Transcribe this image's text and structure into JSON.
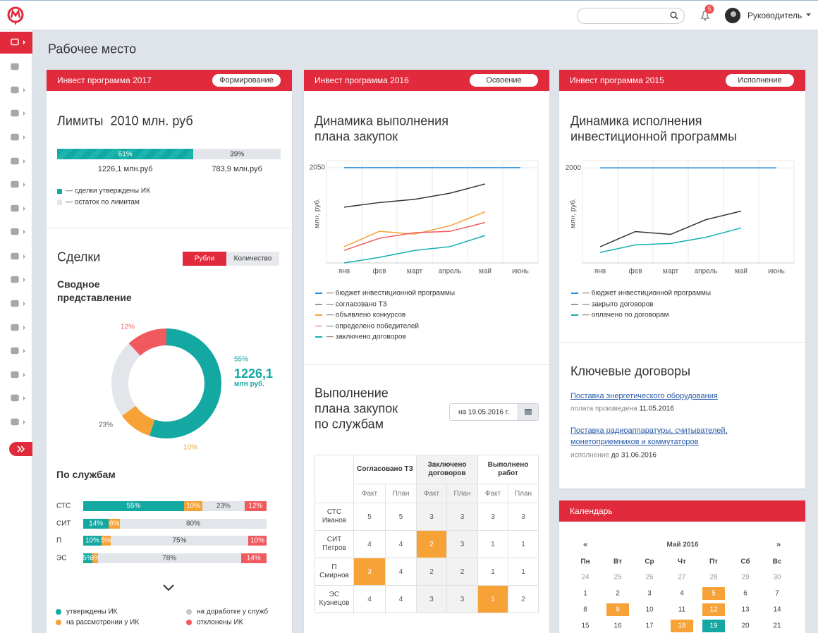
{
  "header": {
    "user": "Руководитель",
    "notifications": "5"
  },
  "page_title": "Рабочее место",
  "card_2017": {
    "title": "Инвест программа 2017",
    "badge": "Формирование",
    "limits_title": "Лимиты  2010 млн. руб",
    "limit_bar": {
      "values": [
        61,
        39
      ],
      "value_labels": [
        "61%",
        "39%"
      ],
      "amounts": [
        "1226,1 млн.руб",
        "783,9 млн.руб"
      ],
      "colors": [
        "#13a8a2",
        "#e2e5ea"
      ]
    },
    "legend": [
      "— сделки утверждены ИК",
      "— остаток по лимитам"
    ],
    "deals_title": "Сделки",
    "toggle": [
      "Рубли",
      "Количество"
    ],
    "summary_title": [
      "Сводное",
      "представление"
    ],
    "donut": {
      "type": "pie",
      "values": [
        55,
        10,
        23,
        12
      ],
      "value_labels": [
        "55%",
        "10%",
        "23%",
        "12%"
      ],
      "colors": [
        "#13a8a2",
        "#f7a236",
        "#e2e5ea",
        "#f05a5f"
      ],
      "center_value": "1226,1",
      "center_unit": "млн руб."
    },
    "services_title": "По службам",
    "services": {
      "type": "bar",
      "colors": [
        "#13a8a2",
        "#f7a236",
        "#e2e5ea",
        "#f05a5f"
      ],
      "rows": [
        {
          "name": "СТС",
          "values": [
            55,
            10,
            23,
            12
          ],
          "value_labels": [
            "55%",
            "10%",
            "23%",
            "12%"
          ]
        },
        {
          "name": "СИТ",
          "values": [
            14,
            6,
            80
          ],
          "value_labels": [
            "14%",
            "6%",
            "80%"
          ]
        },
        {
          "name": "П",
          "values": [
            10,
            5,
            75,
            10
          ],
          "value_labels": [
            "10%",
            "5%",
            "75%",
            "10%"
          ]
        },
        {
          "name": "ЭС",
          "values": [
            5,
            3,
            78,
            14
          ],
          "value_labels": [
            "5%",
            "3%",
            "78%",
            "14%"
          ]
        }
      ]
    },
    "status_legend": [
      "утверждены ИК",
      "на рассмотрении у ИК",
      "на доработке у служб",
      "отклонены ИК"
    ]
  },
  "card_2016": {
    "title": "Инвест программа 2016",
    "badge": "Освоение",
    "chart_title": [
      "Динамика выполнения",
      "плана закупок"
    ],
    "chart": {
      "type": "line",
      "y_label": "млн. руб.",
      "categories": [
        "янв",
        "фев",
        "март",
        "апрель",
        "май",
        "июнь"
      ],
      "ylim": [
        0,
        2200
      ],
      "yticks": [
        2050
      ],
      "grid": true,
      "series": [
        {
          "name": "— бюджет инвестиционной программы",
          "color": "#2a8fd6",
          "values": [
            2050,
            2050,
            2050,
            2050,
            2050,
            2050
          ]
        },
        {
          "name": "— согласовано ТЗ",
          "color": "#333333",
          "values": [
            1200,
            1300,
            1370,
            1500,
            1700,
            null
          ]
        },
        {
          "name": "— объявлено конкурсов",
          "color": "#f7a236",
          "values": [
            350,
            680,
            620,
            800,
            1100,
            null
          ]
        },
        {
          "name": "— определено победителей",
          "color": "#f05a5f",
          "values": [
            270,
            530,
            650,
            680,
            870,
            null
          ]
        },
        {
          "name": "— заключено договоров",
          "color": "#13b0b0",
          "values": [
            0,
            120,
            270,
            350,
            590,
            null
          ]
        }
      ]
    },
    "plan_title": [
      "Выполнение",
      "плана закупок",
      "по службам"
    ],
    "date_button": "на 19.05.2016 г.",
    "table": {
      "groups": [
        "Согласовано ТЗ",
        "Заключено договоров",
        "Выполнено работ"
      ],
      "sub": [
        "Факт",
        "План"
      ],
      "highlight_color": "#f7a236",
      "rows": [
        {
          "dept": "СТС",
          "person": "Иванов",
          "values": [
            5,
            5,
            3,
            3,
            3,
            3
          ],
          "highlight": null
        },
        {
          "dept": "СИТ",
          "person": "Петров",
          "values": [
            4,
            4,
            2,
            3,
            1,
            1
          ],
          "highlight": 2
        },
        {
          "dept": "П",
          "person": "Смирнов",
          "values": [
            3,
            4,
            2,
            2,
            1,
            1
          ],
          "highlight": 0
        },
        {
          "dept": "ЭС",
          "person": "Кузнецов",
          "values": [
            4,
            4,
            3,
            3,
            1,
            2
          ],
          "highlight": 4
        }
      ]
    }
  },
  "card_2015": {
    "title": "Инвест программа 2015",
    "badge": "Исполнение",
    "chart_title": [
      "Динамика исполнения",
      "инвестиционной программы"
    ],
    "chart": {
      "type": "line",
      "y_label": "млн. руб.",
      "categories": [
        "янв",
        "фев",
        "март",
        "апрель",
        "май",
        "июнь"
      ],
      "ylim": [
        0,
        2150
      ],
      "yticks": [
        2000
      ],
      "grid": true,
      "series": [
        {
          "name": "— бюджет инвестиционной программы",
          "color": "#2a8fd6",
          "values": [
            2000,
            2000,
            2000,
            2000,
            2000,
            2000
          ]
        },
        {
          "name": "— закрыто договоров",
          "color": "#333333",
          "values": [
            340,
            660,
            600,
            910,
            1090,
            null
          ]
        },
        {
          "name": "— оплачено по договорам",
          "color": "#13b0b0",
          "values": [
            220,
            380,
            410,
            540,
            735,
            null
          ]
        }
      ]
    },
    "contracts_title": "Ключевые договоры",
    "contracts": [
      {
        "link": "Поставка энергетического оборудования",
        "status": "оплата произведена",
        "date": "11.05.2016"
      },
      {
        "link": "Поставка радиоаппаратуры, считывателей, монетоприемников и коммутаторов",
        "status": "исполнение",
        "date": "до 31.06.2016"
      }
    ]
  },
  "calendar": {
    "title": "Календарь",
    "prev": "«",
    "next": "»",
    "month": "Май 2016",
    "weekdays": [
      "Пн",
      "Вт",
      "Ср",
      "Чт",
      "Пт",
      "Сб",
      "Вс"
    ],
    "weeks": [
      [
        24,
        25,
        26,
        27,
        28,
        29,
        30
      ],
      [
        1,
        2,
        3,
        4,
        5,
        6,
        7
      ],
      [
        8,
        9,
        10,
        11,
        12,
        13,
        14
      ],
      [
        15,
        16,
        17,
        18,
        19,
        20,
        21
      ]
    ],
    "highlights": [
      {
        "color": "#f7a236",
        "days": [
          5,
          9,
          12,
          18
        ]
      },
      {
        "color": "#13a8a2",
        "days": [
          19
        ]
      }
    ]
  }
}
